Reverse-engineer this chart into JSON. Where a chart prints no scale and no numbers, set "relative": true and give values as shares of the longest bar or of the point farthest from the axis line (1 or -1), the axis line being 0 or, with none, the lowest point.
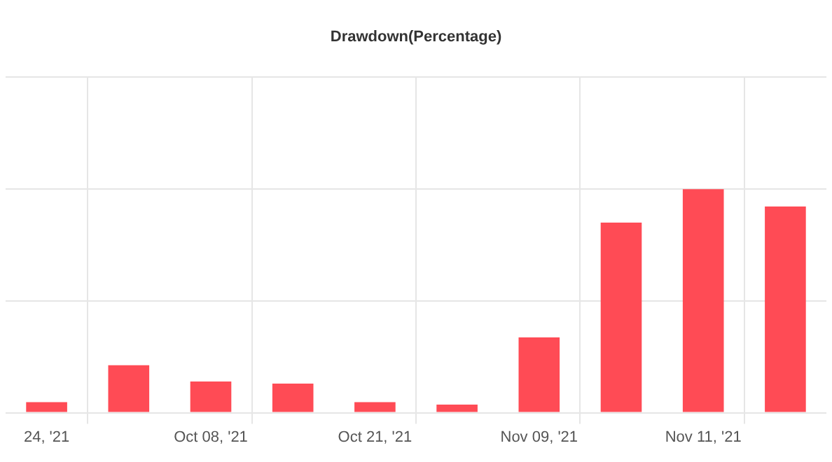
{
  "chart_data": {
    "type": "bar",
    "title": "Drawdown(Percentage)",
    "categories": [
      "24, '21",
      null,
      "Oct 08, '21",
      null,
      "Oct 21, '21",
      null,
      "Nov 09, '21",
      null,
      "Nov 11, '21",
      null
    ],
    "values": [
      0.047,
      0.212,
      0.14,
      0.13,
      0.047,
      0.036,
      0.337,
      0.85,
      1,
      0.922
    ],
    "color": "#ff4b55",
    "relative": true,
    "grid": true
  }
}
